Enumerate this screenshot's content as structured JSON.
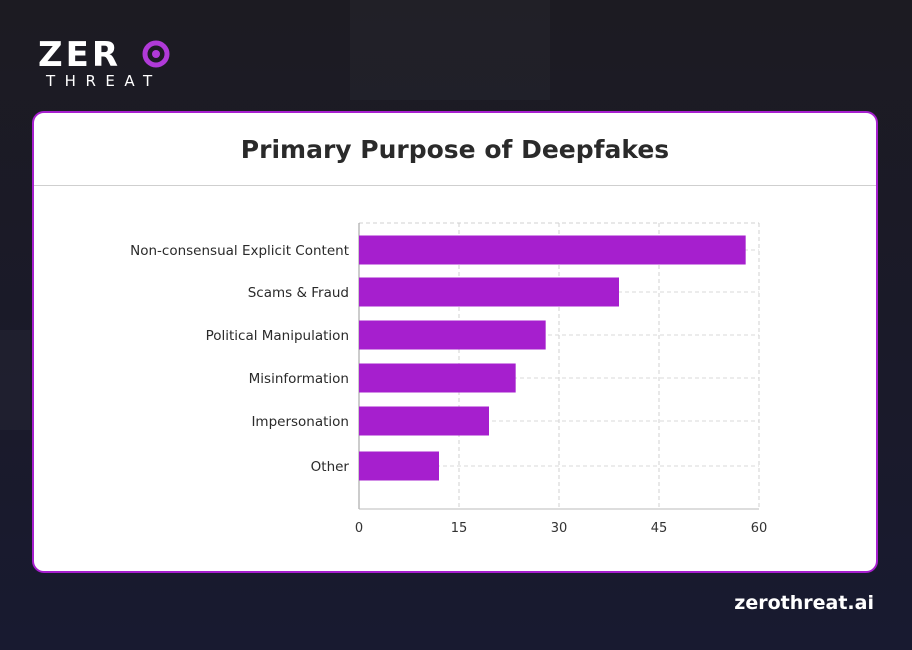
{
  "brand": {
    "logo_top": "ZER",
    "logo_o": "O",
    "logo_bottom": "THREAT",
    "footer_url": "zerothreat.ai",
    "accent": "#a61fce"
  },
  "chart_data": {
    "type": "bar",
    "orientation": "horizontal",
    "title": "Primary Purpose of Deepfakes",
    "categories": [
      "Non-consensual Explicit Content",
      "Scams & Fraud",
      "Political Manipulation",
      "Misinformation",
      "Impersonation",
      "Other"
    ],
    "values": [
      58,
      39,
      28,
      23.5,
      19.5,
      12
    ],
    "xlim": [
      0,
      60
    ],
    "xticks": [
      0,
      15,
      30,
      45,
      60
    ],
    "xlabel": "",
    "ylabel": "",
    "grid": true,
    "bar_color": "#a61fce"
  }
}
